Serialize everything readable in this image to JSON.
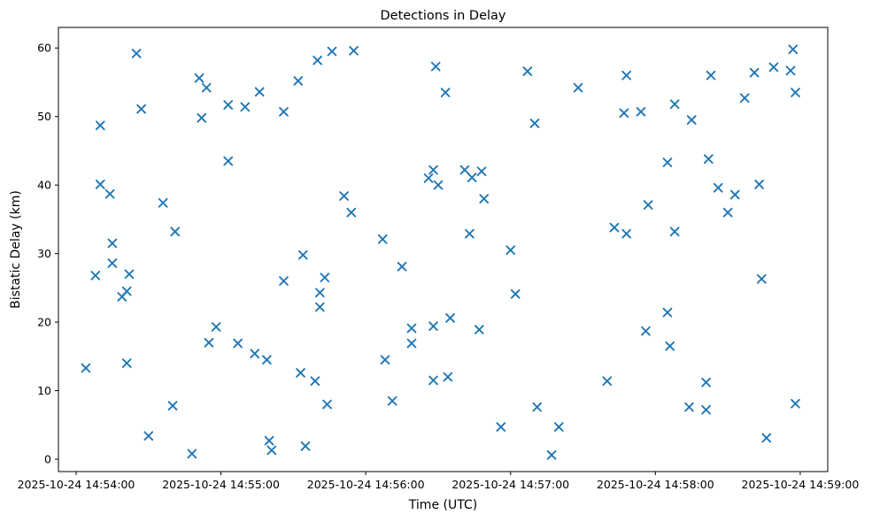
{
  "chart_data": {
    "type": "scatter",
    "title": "Detections in Delay",
    "xlabel": "Time (UTC)",
    "ylabel": "Bistatic Delay (km)",
    "grid": false,
    "legend": null,
    "marker": {
      "shape": "x",
      "color": "#1f77b4"
    },
    "axis_color": "#000000",
    "background_color": "#ffffff",
    "x_unit": "seconds after 2025-10-24 14:54:00 UTC",
    "xlim": [
      -7.33,
      311.4
    ],
    "ylim": [
      -1.81,
      63.0
    ],
    "x_ticks": [
      {
        "value": 0,
        "label": "2025-10-24 14:54:00"
      },
      {
        "value": 60,
        "label": "2025-10-24 14:55:00"
      },
      {
        "value": 120,
        "label": "2025-10-24 14:56:00"
      },
      {
        "value": 180,
        "label": "2025-10-24 14:57:00"
      },
      {
        "value": 240,
        "label": "2025-10-24 14:58:00"
      },
      {
        "value": 300,
        "label": "2025-10-24 14:59:00"
      }
    ],
    "y_ticks": [
      0,
      10,
      20,
      30,
      40,
      50,
      60
    ],
    "points": [
      [
        4,
        13.3
      ],
      [
        8,
        26.8
      ],
      [
        10,
        48.7
      ],
      [
        10,
        40.1
      ],
      [
        14,
        38.7
      ],
      [
        15,
        31.5
      ],
      [
        15,
        28.6
      ],
      [
        19,
        23.7
      ],
      [
        21,
        24.5
      ],
      [
        21,
        14.0
      ],
      [
        22,
        27.0
      ],
      [
        25,
        59.2
      ],
      [
        27,
        51.1
      ],
      [
        30,
        3.4
      ],
      [
        36,
        37.4
      ],
      [
        40,
        7.8
      ],
      [
        41,
        33.2
      ],
      [
        48,
        0.8
      ],
      [
        51,
        55.6
      ],
      [
        52,
        49.8
      ],
      [
        54,
        54.2
      ],
      [
        55,
        17.0
      ],
      [
        58,
        19.3
      ],
      [
        63,
        51.7
      ],
      [
        63,
        43.5
      ],
      [
        67,
        16.9
      ],
      [
        70,
        51.4
      ],
      [
        74,
        15.4
      ],
      [
        76,
        53.6
      ],
      [
        79,
        14.5
      ],
      [
        80,
        2.7
      ],
      [
        81,
        1.3
      ],
      [
        86,
        26.0
      ],
      [
        86,
        50.7
      ],
      [
        92,
        55.2
      ],
      [
        93,
        12.6
      ],
      [
        94,
        29.8
      ],
      [
        95,
        1.9
      ],
      [
        99,
        11.4
      ],
      [
        100,
        58.2
      ],
      [
        101,
        24.3
      ],
      [
        101,
        22.2
      ],
      [
        103,
        26.5
      ],
      [
        104,
        8.0
      ],
      [
        106,
        59.5
      ],
      [
        111,
        38.4
      ],
      [
        114,
        36.0
      ],
      [
        115,
        59.6
      ],
      [
        127,
        32.1
      ],
      [
        128,
        14.5
      ],
      [
        131,
        8.5
      ],
      [
        135,
        28.1
      ],
      [
        139,
        19.1
      ],
      [
        139,
        16.9
      ],
      [
        146,
        41.0
      ],
      [
        148,
        42.2
      ],
      [
        148,
        19.4
      ],
      [
        148,
        11.5
      ],
      [
        149,
        57.3
      ],
      [
        150,
        40.0
      ],
      [
        153,
        53.5
      ],
      [
        154,
        12.0
      ],
      [
        155,
        20.6
      ],
      [
        161,
        42.2
      ],
      [
        163,
        32.9
      ],
      [
        164,
        41.1
      ],
      [
        167,
        18.9
      ],
      [
        168,
        42.0
      ],
      [
        169,
        38.0
      ],
      [
        176,
        4.7
      ],
      [
        180,
        30.5
      ],
      [
        182,
        24.1
      ],
      [
        187,
        56.6
      ],
      [
        190,
        49.0
      ],
      [
        191,
        7.6
      ],
      [
        197,
        0.6
      ],
      [
        200,
        4.7
      ],
      [
        208,
        54.2
      ],
      [
        220,
        11.4
      ],
      [
        223,
        33.8
      ],
      [
        227,
        50.5
      ],
      [
        228,
        56.0
      ],
      [
        228,
        32.9
      ],
      [
        234,
        50.7
      ],
      [
        236,
        18.7
      ],
      [
        237,
        37.1
      ],
      [
        245,
        21.4
      ],
      [
        245,
        43.3
      ],
      [
        246,
        16.5
      ],
      [
        248,
        51.8
      ],
      [
        248,
        33.2
      ],
      [
        254,
        7.6
      ],
      [
        255,
        49.5
      ],
      [
        261,
        11.2
      ],
      [
        261,
        7.2
      ],
      [
        262,
        43.8
      ],
      [
        263,
        56.0
      ],
      [
        266,
        39.6
      ],
      [
        270,
        36.0
      ],
      [
        273,
        38.6
      ],
      [
        277,
        52.7
      ],
      [
        281,
        56.4
      ],
      [
        283,
        40.1
      ],
      [
        284,
        26.3
      ],
      [
        286,
        3.1
      ],
      [
        289,
        57.2
      ],
      [
        296,
        56.7
      ],
      [
        297,
        59.8
      ],
      [
        298,
        8.1
      ],
      [
        298,
        53.5
      ]
    ]
  }
}
